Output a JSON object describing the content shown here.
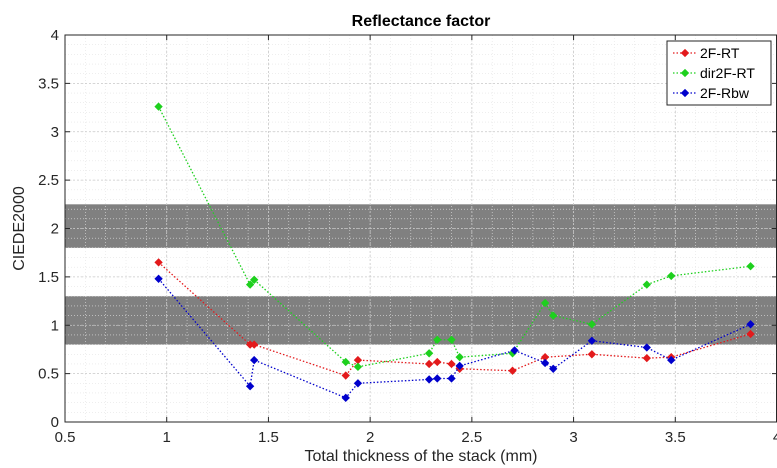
{
  "chart_data": {
    "type": "line",
    "title": "Reflectance factor",
    "xlabel": "Total thickness of the stack (mm)",
    "ylabel": "CIEDE2000",
    "xlim": [
      0.5,
      4
    ],
    "ylim": [
      0,
      4
    ],
    "xticks": [
      0.5,
      1,
      1.5,
      2,
      2.5,
      3,
      3.5,
      4
    ],
    "yticks": [
      0,
      0.5,
      1,
      1.5,
      2,
      2.5,
      3,
      3.5,
      4
    ],
    "xtick_labels": [
      "0.5",
      "1",
      "1.5",
      "2",
      "2.5",
      "3",
      "3.5",
      "4"
    ],
    "ytick_labels": [
      "0",
      "0.5",
      "1",
      "1.5",
      "2",
      "2.5",
      "3",
      "3.5",
      "4"
    ],
    "grid": true,
    "minor_grid": true,
    "legend_position": "top-right",
    "bands": [
      {
        "y0": 0.8,
        "y1": 1.3,
        "color": "#808080"
      },
      {
        "y0": 1.8,
        "y1": 2.25,
        "color": "#808080"
      }
    ],
    "series": [
      {
        "name": "2F-RT",
        "color": "#e31a1c",
        "marker": "diamond",
        "line": "dotted",
        "x": [
          0.96,
          1.41,
          1.43,
          1.88,
          1.94,
          2.29,
          2.33,
          2.4,
          2.44,
          2.7,
          2.86,
          3.09,
          3.36,
          3.48,
          3.87
        ],
        "y": [
          1.65,
          0.8,
          0.8,
          0.48,
          0.64,
          0.6,
          0.62,
          0.6,
          0.55,
          0.53,
          0.67,
          0.7,
          0.66,
          0.67,
          0.91
        ]
      },
      {
        "name": "dir2F-RT",
        "color": "#1ed01e",
        "marker": "diamond",
        "line": "dotted",
        "x": [
          0.96,
          1.41,
          1.43,
          1.88,
          1.94,
          2.29,
          2.33,
          2.4,
          2.44,
          2.7,
          2.86,
          2.9,
          3.09,
          3.36,
          3.48,
          3.87
        ],
        "y": [
          3.26,
          1.42,
          1.47,
          0.62,
          0.57,
          0.71,
          0.85,
          0.85,
          0.67,
          0.71,
          1.23,
          1.1,
          1.01,
          1.42,
          1.51,
          1.61
        ]
      },
      {
        "name": "2F-Rbw",
        "color": "#0000cc",
        "marker": "diamond",
        "line": "dotted",
        "x": [
          0.96,
          1.41,
          1.43,
          1.88,
          1.94,
          2.29,
          2.33,
          2.4,
          2.44,
          2.71,
          2.86,
          2.9,
          3.09,
          3.36,
          3.48,
          3.87
        ],
        "y": [
          1.48,
          0.37,
          0.64,
          0.25,
          0.4,
          0.44,
          0.45,
          0.45,
          0.58,
          0.74,
          0.61,
          0.55,
          0.84,
          0.77,
          0.64,
          1.01
        ]
      }
    ]
  }
}
